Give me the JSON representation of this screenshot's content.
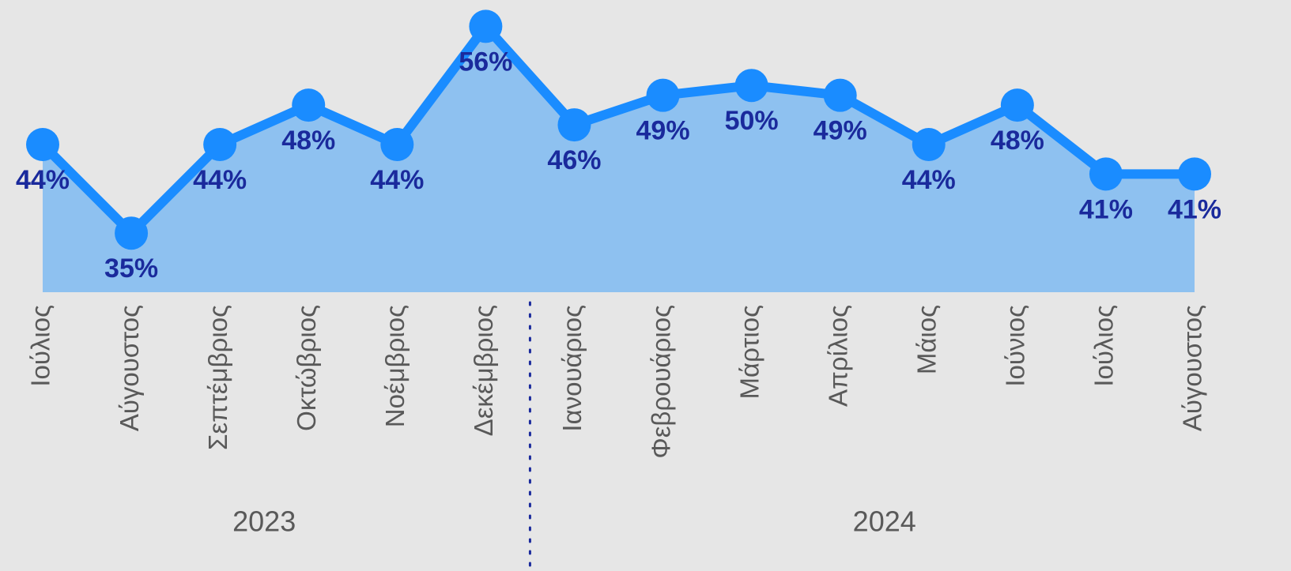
{
  "chart_data": {
    "type": "line",
    "groups": [
      {
        "name": "2023",
        "categories": [
          "Ιούλιος",
          "Αύγουστος",
          "Σεπτέμβριος",
          "Οκτώβριος",
          "Νοέμβριος",
          "Δεκέμβριος"
        ]
      },
      {
        "name": "2024",
        "categories": [
          "Ιανουάριος",
          "Φεβρουάριος",
          "Μάρτιος",
          "Απρίλιος",
          "Μάιος",
          "Ιούνιος",
          "Ιούλιος",
          "Αύγουστος"
        ]
      }
    ],
    "values": [
      44,
      35,
      44,
      48,
      44,
      56,
      46,
      49,
      50,
      49,
      44,
      48,
      41,
      41
    ],
    "value_labels": [
      "44%",
      "35%",
      "44%",
      "48%",
      "44%",
      "56%",
      "46%",
      "49%",
      "50%",
      "49%",
      "44%",
      "48%",
      "41%",
      "41%"
    ],
    "color": "#1a8cff",
    "area_color": "#8ec1f0",
    "label_color": "#1a2a9c",
    "ylim": [
      29,
      59
    ]
  }
}
